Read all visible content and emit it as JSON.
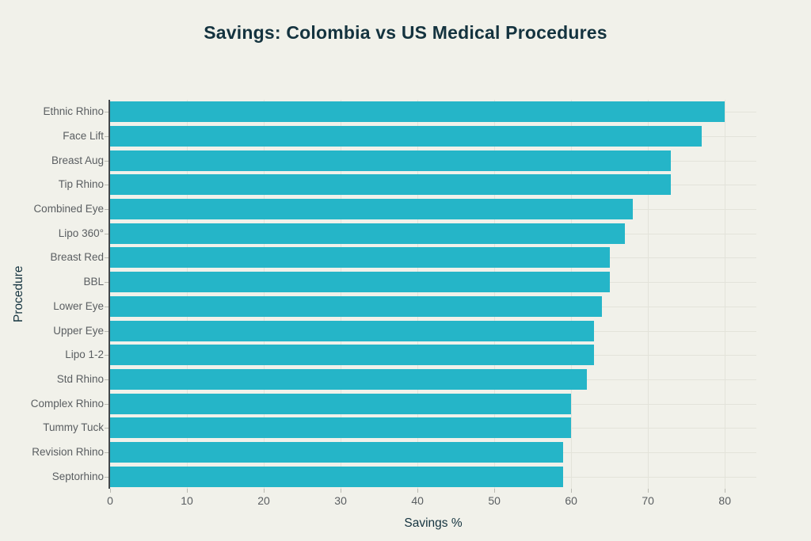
{
  "title": "Savings: Colombia vs US Medical Procedures",
  "chart_data": {
    "type": "bar",
    "orientation": "horizontal",
    "title": "Savings: Colombia vs US Medical Procedures",
    "xlabel": "Savings %",
    "ylabel": "Procedure",
    "categories": [
      "Ethnic Rhino",
      "Face Lift",
      "Breast Aug",
      "Tip Rhino",
      "Combined Eye",
      "Lipo 360°",
      "Breast Red",
      "BBL",
      "Lower Eye",
      "Upper Eye",
      "Lipo 1-2",
      "Std Rhino",
      "Complex Rhino",
      "Tummy Tuck",
      "Revision Rhino",
      "Septorhino"
    ],
    "values": [
      80,
      77,
      73,
      73,
      68,
      67,
      65,
      65,
      64,
      63,
      63,
      62,
      60,
      60,
      59,
      59
    ],
    "xticks": [
      0,
      10,
      20,
      30,
      40,
      50,
      60,
      70,
      80
    ],
    "xlim": [
      0,
      84.1
    ],
    "grid": true,
    "legend": false,
    "colors": {
      "bar": "#25b5c8",
      "background": "#f1f1ea",
      "heading_text": "#14333f",
      "tick_text": "#5a5e61",
      "gridline": "#e3e3da",
      "axis_line": "#43484b",
      "tick_mark": "#b9b9b1"
    }
  }
}
